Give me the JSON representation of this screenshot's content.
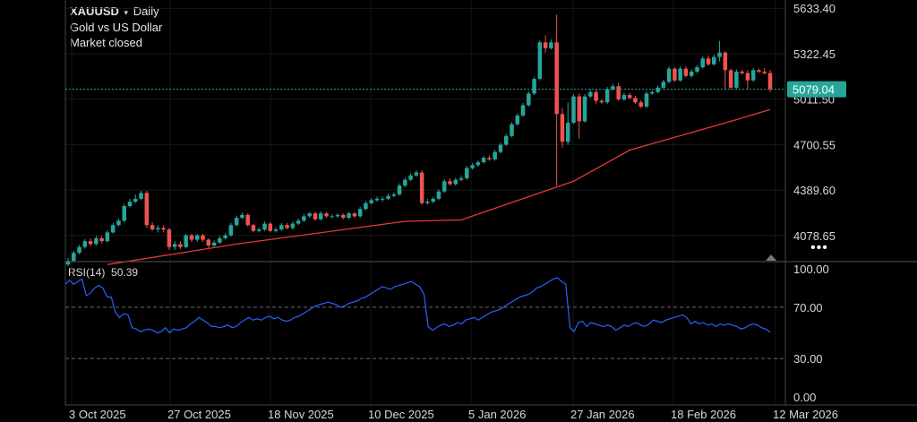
{
  "header": {
    "symbol": "XAUUSD",
    "caret": "▾",
    "interval": "Daily",
    "description": "Gold vs US Dollar",
    "status": "Market closed"
  },
  "indicator": {
    "label": "RSI(14)",
    "value": "50.39"
  },
  "more_icon": "•••",
  "colors": {
    "up": "#26a69a",
    "down": "#ef5350",
    "ma": "#e53935",
    "rsi": "#2962ff",
    "last_price_line": "#26a69a"
  },
  "chart_data": [
    {
      "type": "candlestick",
      "title": "XAUUSD Daily",
      "y_ticks": [
        "5633.40",
        "5322.45",
        "5011.50",
        "4700.55",
        "4389.60",
        "4078.65"
      ],
      "y_tick_values": [
        5633.4,
        5322.45,
        5011.5,
        4700.55,
        4389.6,
        4078.65
      ],
      "ylim": [
        3900,
        5690
      ],
      "x_ticks": [
        "3 Oct 2025",
        "27 Oct 2025",
        "18 Nov 2025",
        "10 Dec 2025",
        "5 Jan 2026",
        "27 Jan 2026",
        "18 Feb 2026",
        "12 Mar 2026"
      ],
      "last_price": "5079.04",
      "last_price_value": 5079.04,
      "grid": true,
      "series": [
        {
          "name": "XAUUSD",
          "ohlc": [
            [
              3880,
              3905,
              3870,
              3925
            ],
            [
              3905,
              3960,
              3895,
              3975
            ],
            [
              3960,
              4000,
              3950,
              4015
            ],
            [
              4000,
              4040,
              3990,
              4055
            ],
            [
              4040,
              4020,
              4005,
              4060
            ],
            [
              4020,
              4060,
              4010,
              4075
            ],
            [
              4060,
              4040,
              4025,
              4075
            ],
            [
              4040,
              4100,
              4030,
              4115
            ],
            [
              4100,
              4150,
              4090,
              4165
            ],
            [
              4150,
              4180,
              4140,
              4195
            ],
            [
              4180,
              4280,
              4170,
              4295
            ],
            [
              4280,
              4310,
              4270,
              4330
            ],
            [
              4310,
              4330,
              4300,
              4360
            ],
            [
              4330,
              4370,
              4320,
              4385
            ],
            [
              4370,
              4150,
              4130,
              4385
            ],
            [
              4150,
              4120,
              4110,
              4170
            ],
            [
              4120,
              4130,
              4100,
              4150
            ],
            [
              4130,
              4120,
              4100,
              4150
            ],
            [
              4120,
              4000,
              3980,
              4130
            ],
            [
              4000,
              4020,
              3980,
              4040
            ],
            [
              4020,
              4000,
              3985,
              4040
            ],
            [
              4000,
              4080,
              3990,
              4090
            ],
            [
              4080,
              4050,
              4035,
              4090
            ],
            [
              4050,
              4080,
              4035,
              4090
            ],
            [
              4080,
              4050,
              4035,
              4090
            ],
            [
              4050,
              4010,
              3995,
              4060
            ],
            [
              4010,
              4030,
              4000,
              4045
            ],
            [
              4030,
              4060,
              4020,
              4075
            ],
            [
              4060,
              4080,
              4050,
              4095
            ],
            [
              4080,
              4150,
              4070,
              4165
            ],
            [
              4150,
              4200,
              4140,
              4215
            ],
            [
              4200,
              4220,
              4190,
              4235
            ],
            [
              4220,
              4150,
              4140,
              4230
            ],
            [
              4150,
              4110,
              4100,
              4160
            ],
            [
              4110,
              4120,
              4100,
              4135
            ],
            [
              4120,
              4160,
              4110,
              4175
            ],
            [
              4160,
              4110,
              4100,
              4170
            ],
            [
              4110,
              4120,
              4100,
              4135
            ],
            [
              4120,
              4150,
              4110,
              4165
            ],
            [
              4150,
              4130,
              4120,
              4165
            ],
            [
              4130,
              4160,
              4120,
              4175
            ],
            [
              4160,
              4180,
              4150,
              4195
            ],
            [
              4180,
              4210,
              4170,
              4225
            ],
            [
              4210,
              4230,
              4200,
              4240
            ],
            [
              4230,
              4190,
              4180,
              4240
            ],
            [
              4190,
              4230,
              4180,
              4245
            ],
            [
              4230,
              4210,
              4200,
              4240
            ],
            [
              4210,
              4210,
              4200,
              4225
            ],
            [
              4210,
              4220,
              4200,
              4230
            ],
            [
              4220,
              4200,
              4190,
              4230
            ],
            [
              4200,
              4230,
              4190,
              4240
            ],
            [
              4230,
              4210,
              4200,
              4240
            ],
            [
              4210,
              4260,
              4200,
              4275
            ],
            [
              4260,
              4300,
              4250,
              4315
            ],
            [
              4300,
              4320,
              4290,
              4335
            ],
            [
              4320,
              4330,
              4310,
              4345
            ],
            [
              4330,
              4330,
              4310,
              4345
            ],
            [
              4330,
              4350,
              4320,
              4365
            ],
            [
              4350,
              4360,
              4340,
              4375
            ],
            [
              4360,
              4420,
              4350,
              4435
            ],
            [
              4420,
              4460,
              4410,
              4475
            ],
            [
              4460,
              4490,
              4450,
              4505
            ],
            [
              4490,
              4510,
              4480,
              4525
            ],
            [
              4510,
              4300,
              4290,
              4525
            ],
            [
              4300,
              4310,
              4290,
              4330
            ],
            [
              4310,
              4330,
              4300,
              4345
            ],
            [
              4330,
              4380,
              4320,
              4395
            ],
            [
              4380,
              4450,
              4370,
              4465
            ],
            [
              4450,
              4430,
              4420,
              4470
            ],
            [
              4430,
              4460,
              4420,
              4475
            ],
            [
              4460,
              4470,
              4450,
              4490
            ],
            [
              4470,
              4540,
              4460,
              4555
            ],
            [
              4540,
              4560,
              4530,
              4575
            ],
            [
              4560,
              4580,
              4550,
              4595
            ],
            [
              4580,
              4610,
              4570,
              4625
            ],
            [
              4610,
              4600,
              4590,
              4625
            ],
            [
              4600,
              4650,
              4590,
              4665
            ],
            [
              4650,
              4700,
              4640,
              4715
            ],
            [
              4700,
              4760,
              4690,
              4775
            ],
            [
              4760,
              4840,
              4750,
              4855
            ],
            [
              4840,
              4900,
              4830,
              4915
            ],
            [
              4900,
              4970,
              4890,
              4985
            ],
            [
              4970,
              5050,
              4960,
              5065
            ],
            [
              5050,
              5150,
              5040,
              5165
            ],
            [
              5150,
              5400,
              5140,
              5415
            ],
            [
              5400,
              5360,
              5330,
              5450
            ],
            [
              5360,
              5400,
              5350,
              5420
            ],
            [
              5400,
              4910,
              4420,
              5590
            ],
            [
              4910,
              4720,
              4680,
              4950
            ],
            [
              4720,
              4850,
              4700,
              4990
            ],
            [
              4850,
              5030,
              4840,
              5045
            ],
            [
              5030,
              4860,
              4740,
              5050
            ],
            [
              4860,
              5030,
              4850,
              5045
            ],
            [
              5030,
              5060,
              5020,
              5080
            ],
            [
              5060,
              5000,
              4980,
              5080
            ],
            [
              5000,
              4990,
              4980,
              5010
            ],
            [
              4990,
              5080,
              4980,
              5095
            ],
            [
              5080,
              5100,
              5070,
              5115
            ],
            [
              5100,
              5010,
              5000,
              5120
            ],
            [
              5010,
              5040,
              5000,
              5055
            ],
            [
              5040,
              5020,
              5010,
              5055
            ],
            [
              5020,
              4990,
              4980,
              5035
            ],
            [
              4990,
              4960,
              4950,
              5005
            ],
            [
              4960,
              5050,
              4950,
              5065
            ],
            [
              5050,
              5060,
              5040,
              5075
            ],
            [
              5060,
              5090,
              5050,
              5105
            ],
            [
              5090,
              5130,
              5080,
              5145
            ],
            [
              5130,
              5220,
              5120,
              5235
            ],
            [
              5220,
              5140,
              5130,
              5230
            ],
            [
              5140,
              5220,
              5130,
              5235
            ],
            [
              5220,
              5170,
              5160,
              5235
            ],
            [
              5170,
              5200,
              5160,
              5215
            ],
            [
              5200,
              5230,
              5190,
              5245
            ],
            [
              5230,
              5290,
              5220,
              5305
            ],
            [
              5290,
              5250,
              5240,
              5310
            ],
            [
              5250,
              5300,
              5240,
              5315
            ],
            [
              5300,
              5330,
              5270,
              5410
            ],
            [
              5330,
              5210,
              5080,
              5340
            ],
            [
              5210,
              5090,
              5080,
              5220
            ],
            [
              5090,
              5200,
              5080,
              5215
            ],
            [
              5200,
              5190,
              5180,
              5210
            ],
            [
              5190,
              5140,
              5080,
              5210
            ],
            [
              5140,
              5210,
              5130,
              5225
            ],
            [
              5210,
              5200,
              5190,
              5220
            ],
            [
              5200,
              5190,
              5180,
              5225
            ],
            [
              5190,
              5079.04,
              5060,
              5210
            ]
          ]
        },
        {
          "name": "MA",
          "x_index": [
            7,
            30,
            60,
            70,
            90,
            100,
            118,
            125
          ],
          "values": [
            3880,
            4020,
            4176,
            4185,
            4450,
            4663,
            4860,
            4940
          ]
        }
      ]
    },
    {
      "type": "line",
      "title": "RSI(14)",
      "y_ticks": [
        "100.00",
        "70.00",
        "30.00",
        "0.00"
      ],
      "y_tick_values": [
        100,
        70,
        30,
        0
      ],
      "ylim": [
        0,
        100
      ],
      "guide_levels": [
        70,
        30
      ],
      "x_ticks": [
        "3 Oct 2025",
        "27 Oct 2025",
        "18 Nov 2025",
        "10 Dec 2025",
        "5 Jan 2026",
        "27 Jan 2026",
        "18 Feb 2026",
        "12 Mar 2026"
      ],
      "series": [
        {
          "name": "RSI(14)",
          "values": [
            88,
            91,
            88,
            90,
            92,
            79,
            81,
            85,
            87,
            85,
            78,
            78,
            66,
            62,
            65,
            64,
            54,
            53,
            51,
            52,
            53,
            52,
            50,
            51,
            54,
            50,
            53,
            52,
            53,
            54,
            57,
            59,
            62,
            60,
            58,
            55,
            55,
            54,
            55,
            56,
            54,
            55,
            58,
            60,
            62,
            60,
            61,
            60,
            62,
            63,
            61,
            62,
            60,
            59,
            60,
            62,
            63,
            65,
            67,
            69,
            71,
            72,
            73,
            74,
            73,
            72,
            70,
            71,
            73,
            74,
            75,
            77,
            78,
            80,
            82,
            84,
            86,
            85,
            84,
            86,
            87,
            88,
            89,
            90,
            88,
            86,
            80,
            55,
            52,
            54,
            56,
            57,
            55,
            56,
            58,
            57,
            60,
            61,
            62,
            60,
            62,
            64,
            66,
            67,
            68,
            70,
            72,
            74,
            76,
            78,
            79,
            80,
            82,
            85,
            86,
            88,
            90,
            92,
            93,
            90,
            88,
            54,
            51,
            58,
            59,
            55,
            58,
            57,
            56,
            55,
            56,
            55,
            52,
            54,
            56,
            55,
            57,
            58,
            56,
            55,
            57,
            60,
            59,
            58,
            60,
            61,
            62,
            63,
            64,
            62,
            57,
            59,
            57,
            58,
            56,
            57,
            55,
            57,
            56,
            57,
            56,
            55,
            53,
            54,
            56,
            57,
            56,
            54,
            53,
            50.39
          ]
        }
      ]
    }
  ]
}
